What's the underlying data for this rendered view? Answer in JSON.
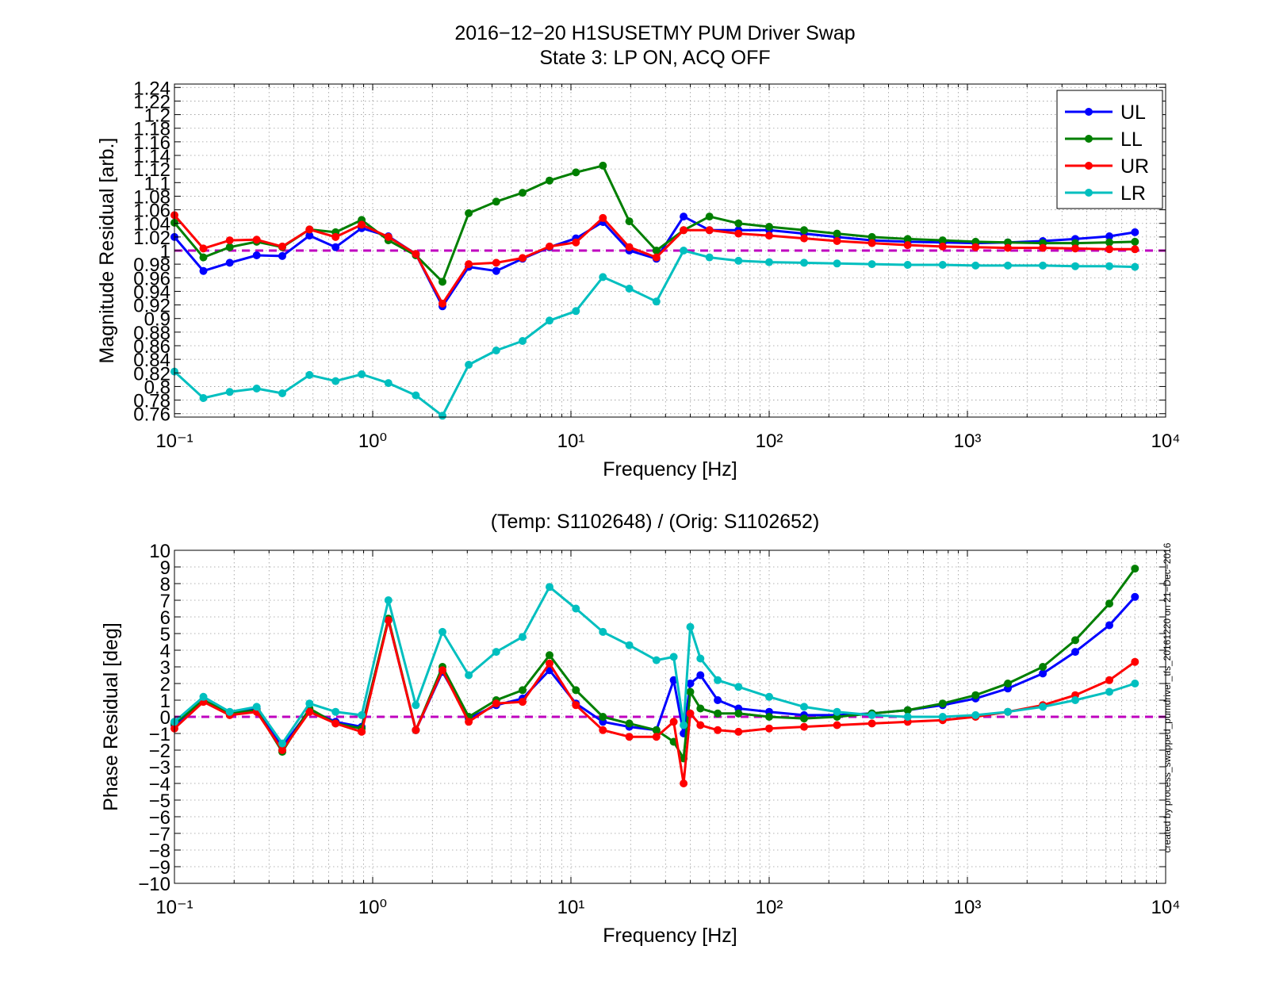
{
  "figure": {
    "title_line1": "2016−12−20 H1SUSETMY PUM Driver Swap",
    "title_line2": "State 3: LP ON, ACQ OFF",
    "subtitle": "(Temp: S1102648) / (Orig: S1102652)",
    "side_note": "created by process_swapped_pumdriver_tfs_20161220 on 21−Dec−2016"
  },
  "colors": {
    "UL": "#0000ff",
    "LL": "#007f00",
    "UR": "#ff0000",
    "LR": "#00bfbf",
    "reference": "#bf00bf",
    "grid": "#9a9a9a"
  },
  "chart_data": [
    {
      "type": "line",
      "xscale": "log",
      "xlim": [
        0.1,
        10000
      ],
      "ylim": [
        0.755,
        1.245
      ],
      "xlabel": "Frequency [Hz]",
      "ylabel": "Magnitude Residual [arb.]",
      "x_ticks": [
        "10⁻¹",
        "10⁰",
        "10¹",
        "10²",
        "10³",
        "10⁴"
      ],
      "y_ticks": [
        "0.76",
        "0.78",
        "0.8",
        "0.82",
        "0.84",
        "0.86",
        "0.88",
        "0.9",
        "0.92",
        "0.94",
        "0.96",
        "0.98",
        "1",
        "1.02",
        "1.04",
        "1.06",
        "1.08",
        "1.1",
        "1.12",
        "1.14",
        "1.16",
        "1.18",
        "1.2",
        "1.22",
        "1.24"
      ],
      "grid": true,
      "legend_position": "top-right",
      "reference_line": 1.0,
      "x": [
        0.1,
        0.14,
        0.19,
        0.26,
        0.35,
        0.48,
        0.65,
        0.88,
        1.2,
        1.65,
        2.25,
        3.05,
        4.2,
        5.7,
        7.8,
        10.6,
        14.5,
        19.7,
        27,
        37,
        50,
        70,
        100,
        150,
        220,
        330,
        500,
        750,
        1100,
        1600,
        2400,
        3500,
        5200,
        7000
      ],
      "series": [
        {
          "name": "UL",
          "values": [
            1.02,
            0.97,
            0.982,
            0.993,
            0.992,
            1.022,
            1.005,
            1.033,
            1.021,
            0.995,
            0.918,
            0.976,
            0.97,
            0.988,
            1.005,
            1.018,
            1.042,
            1.0,
            0.988,
            1.05,
            1.03,
            1.03,
            1.03,
            1.025,
            1.02,
            1.015,
            1.013,
            1.012,
            1.011,
            1.012,
            1.014,
            1.017,
            1.021,
            1.027
          ]
        },
        {
          "name": "LL",
          "values": [
            1.041,
            0.99,
            1.005,
            1.013,
            1.005,
            1.031,
            1.027,
            1.045,
            1.015,
            0.993,
            0.954,
            1.055,
            1.072,
            1.085,
            1.103,
            1.115,
            1.125,
            1.043,
            1.0,
            1.03,
            1.05,
            1.04,
            1.035,
            1.03,
            1.025,
            1.02,
            1.017,
            1.015,
            1.013,
            1.012,
            1.011,
            1.011,
            1.012,
            1.013
          ]
        },
        {
          "name": "UR",
          "values": [
            1.052,
            1.003,
            1.015,
            1.016,
            1.006,
            1.031,
            1.02,
            1.038,
            1.02,
            0.995,
            0.922,
            0.98,
            0.982,
            0.989,
            1.006,
            1.012,
            1.048,
            1.005,
            0.99,
            1.03,
            1.03,
            1.025,
            1.022,
            1.018,
            1.014,
            1.011,
            1.008,
            1.006,
            1.005,
            1.004,
            1.004,
            1.003,
            1.002,
            1.002
          ]
        },
        {
          "name": "LR",
          "values": [
            0.822,
            0.783,
            0.792,
            0.797,
            0.79,
            0.817,
            0.808,
            0.818,
            0.805,
            0.787,
            0.757,
            0.832,
            0.853,
            0.867,
            0.897,
            0.911,
            0.961,
            0.944,
            0.925,
            1.0,
            0.99,
            0.985,
            0.983,
            0.982,
            0.981,
            0.98,
            0.979,
            0.979,
            0.978,
            0.978,
            0.978,
            0.977,
            0.977,
            0.976
          ]
        }
      ]
    },
    {
      "type": "line",
      "xscale": "log",
      "xlim": [
        0.1,
        10000
      ],
      "ylim": [
        -10,
        10
      ],
      "xlabel": "Frequency [Hz]",
      "ylabel": "Phase Residual [deg]",
      "x_ticks": [
        "10⁻¹",
        "10⁰",
        "10¹",
        "10²",
        "10³",
        "10⁴"
      ],
      "y_ticks": [
        "−10",
        "−9",
        "−8",
        "−7",
        "−6",
        "−5",
        "−4",
        "−3",
        "−2",
        "−1",
        "0",
        "1",
        "2",
        "3",
        "4",
        "5",
        "6",
        "7",
        "8",
        "9",
        "10"
      ],
      "grid": true,
      "reference_line": 0,
      "x": [
        0.1,
        0.14,
        0.19,
        0.26,
        0.35,
        0.48,
        0.65,
        0.88,
        1.2,
        1.65,
        2.25,
        3.05,
        4.2,
        5.7,
        7.8,
        10.6,
        14.5,
        19.7,
        27,
        33,
        37,
        40,
        45,
        55,
        70,
        100,
        150,
        220,
        330,
        500,
        750,
        1100,
        1600,
        2400,
        3500,
        5200,
        7000
      ],
      "series": [
        {
          "name": "UL",
          "values": [
            -0.5,
            1.0,
            0.2,
            0.5,
            -1.8,
            0.4,
            -0.3,
            -0.6,
            5.8,
            -0.8,
            2.7,
            -0.1,
            0.7,
            1.1,
            2.8,
            0.8,
            -0.3,
            -0.6,
            -0.8,
            2.2,
            -1.0,
            2.0,
            2.5,
            1.0,
            0.5,
            0.3,
            0.1,
            0.1,
            0.2,
            0.4,
            0.7,
            1.1,
            1.7,
            2.6,
            3.9,
            5.5,
            7.2
          ]
        },
        {
          "name": "LL",
          "values": [
            -0.4,
            1.0,
            0.2,
            0.4,
            -2.1,
            0.5,
            -0.4,
            -0.7,
            5.9,
            -0.8,
            3.0,
            0.0,
            1.0,
            1.6,
            3.7,
            1.6,
            0.0,
            -0.4,
            -0.8,
            -1.5,
            -2.5,
            1.5,
            0.5,
            0.2,
            0.2,
            0.0,
            -0.1,
            0.0,
            0.2,
            0.4,
            0.8,
            1.3,
            2.0,
            3.0,
            4.6,
            6.8,
            8.9
          ]
        },
        {
          "name": "UR",
          "values": [
            -0.7,
            0.9,
            0.1,
            0.3,
            -2.0,
            0.3,
            -0.4,
            -0.9,
            5.8,
            -0.8,
            2.8,
            -0.3,
            0.8,
            0.9,
            3.2,
            0.7,
            -0.8,
            -1.2,
            -1.2,
            -0.3,
            -4.0,
            0.2,
            -0.5,
            -0.8,
            -0.9,
            -0.7,
            -0.6,
            -0.5,
            -0.4,
            -0.3,
            -0.2,
            0.0,
            0.3,
            0.7,
            1.3,
            2.2,
            3.3
          ]
        },
        {
          "name": "LR",
          "values": [
            -0.3,
            1.2,
            0.3,
            0.6,
            -1.6,
            0.8,
            0.3,
            0.1,
            7.0,
            0.7,
            5.1,
            2.5,
            3.9,
            4.8,
            7.8,
            6.5,
            5.1,
            4.3,
            3.4,
            3.6,
            -0.5,
            5.4,
            3.5,
            2.2,
            1.8,
            1.2,
            0.6,
            0.3,
            0.1,
            0.0,
            0.0,
            0.1,
            0.3,
            0.6,
            1.0,
            1.5,
            2.0
          ]
        }
      ]
    }
  ]
}
